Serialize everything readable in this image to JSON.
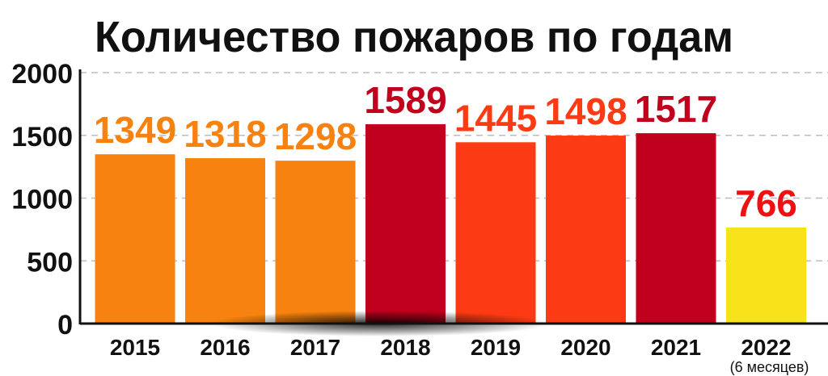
{
  "chart_data": {
    "type": "bar",
    "title": "Количество пожаров по годам",
    "xlabel": "",
    "ylabel": "",
    "ylim": [
      0,
      2000
    ],
    "y_ticks": [
      "2000",
      "1500",
      "1000",
      "500",
      "0"
    ],
    "grid": "dashed horizontal",
    "legend": "none",
    "categories": [
      "2015",
      "2016",
      "2017",
      "2018",
      "2019",
      "2020",
      "2021",
      "2022"
    ],
    "category_notes": [
      "",
      "",
      "",
      "",
      "",
      "",
      "",
      "(6 месяцев)"
    ],
    "values": [
      1349,
      1318,
      1298,
      1589,
      1445,
      1498,
      1517,
      766
    ],
    "value_labels": [
      "1349",
      "1318",
      "1298",
      "1589",
      "1445",
      "1498",
      "1517",
      "766"
    ],
    "bar_colors": [
      "#f7820f",
      "#f7820f",
      "#f7820f",
      "#c0001c",
      "#fc3a13",
      "#fc3a13",
      "#c0001c",
      "#f8e31b"
    ],
    "label_colors": [
      "#f7820f",
      "#f7820f",
      "#f7820f",
      "#c0001c",
      "#fc3a13",
      "#fc3a13",
      "#c0001c",
      "#ee1111"
    ]
  }
}
